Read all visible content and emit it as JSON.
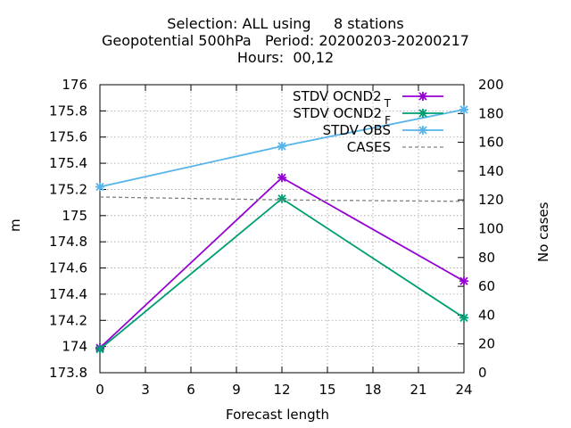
{
  "title_lines": [
    "Selection: ALL using     8 stations",
    "Geopotential 500hPa   Period: 20200203-20200217",
    "Hours:  00,12"
  ],
  "chart_data": {
    "type": "line",
    "xlabel": "Forecast length",
    "ylabel": "m",
    "y2label": "No cases",
    "x_ticks": [
      0,
      3,
      6,
      9,
      12,
      15,
      18,
      21,
      24
    ],
    "xlim": [
      0,
      24
    ],
    "ylim": [
      173.8,
      176
    ],
    "y_ticks": [
      173.8,
      174,
      174.2,
      174.4,
      174.6,
      174.8,
      175,
      175.2,
      175.4,
      175.6,
      175.8,
      176
    ],
    "y2lim": [
      0,
      200
    ],
    "y2_ticks": [
      0,
      20,
      40,
      60,
      80,
      100,
      120,
      140,
      160,
      180,
      200
    ],
    "grid": true,
    "legend_position": "top-right",
    "series": [
      {
        "name": "STDV OCND2",
        "subscript": "T",
        "color": "#9400d3",
        "marker": "x-star",
        "axis": "y",
        "x": [
          0,
          12,
          24
        ],
        "y": [
          173.99,
          175.29,
          174.5
        ]
      },
      {
        "name": "STDV OCND2",
        "subscript": "F",
        "color": "#009e73",
        "marker": "x-star",
        "axis": "y",
        "x": [
          0,
          12,
          24
        ],
        "y": [
          173.98,
          175.13,
          174.22
        ]
      },
      {
        "name": "STDV OBS",
        "subscript": "",
        "color": "#56b4e9",
        "marker": "x-star",
        "axis": "y",
        "x": [
          0,
          12,
          24
        ],
        "y": [
          175.22,
          175.53,
          175.81
        ]
      },
      {
        "name": "CASES",
        "subscript": "",
        "color": "#808080",
        "marker": "none",
        "dashed": true,
        "axis": "y2",
        "x": [
          0,
          12,
          24
        ],
        "y": [
          122,
          120,
          119
        ]
      }
    ]
  }
}
